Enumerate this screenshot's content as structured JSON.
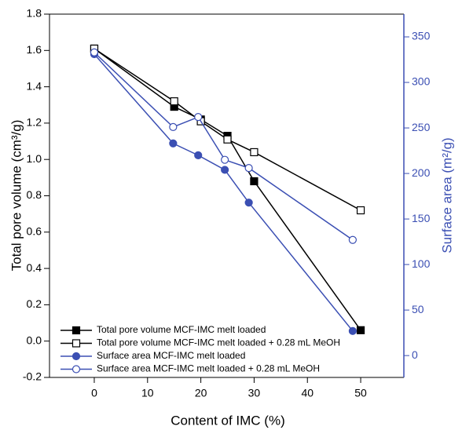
{
  "chart_data": {
    "type": "line",
    "xlabel": "Content of IMC (%)",
    "ylabel": "Total pore volume (cm³/g)",
    "y2label": "Surface area (m²/g)",
    "xlim": [
      -8.4,
      58.1
    ],
    "xticks": [
      0,
      10,
      20,
      30,
      40,
      50
    ],
    "ylim": [
      -0.2,
      1.8
    ],
    "yticks": [
      -0.2,
      {
        "value": 0,
        "label": "0.0"
      },
      0.2,
      0.4,
      0.6,
      0.8,
      {
        "value": 1,
        "label": "1.0"
      },
      1.2,
      1.4,
      1.6,
      1.8
    ],
    "y2lim": [
      -24,
      375
    ],
    "y2ticks": [
      0,
      50,
      100,
      150,
      200,
      250,
      300,
      350
    ],
    "y2color": "#3b4fb3",
    "legend": "lower left",
    "series": [
      {
        "name": "Total pore volume MCF-IMC melt loaded",
        "color": "#000000",
        "marker": "square",
        "filled": true,
        "x": [
          0,
          15,
          20,
          25,
          30,
          50
        ],
        "values": [
          1.61,
          1.29,
          1.22,
          1.13,
          0.88,
          0.06
        ]
      },
      {
        "name": "Total pore volume MCF-IMC melt loaded + 0.28 mL MeOH",
        "color": "#000000",
        "marker": "square",
        "filled": false,
        "x": [
          0,
          15,
          20,
          25,
          30,
          50
        ],
        "values": [
          1.61,
          1.32,
          1.21,
          1.11,
          1.04,
          0.72
        ]
      },
      {
        "name": "Surface area MCF-IMC melt loaded",
        "color": "#3b4fb3",
        "marker": "circle",
        "filled": true,
        "axis": "y2",
        "x": [
          0,
          14.8,
          19.5,
          24.5,
          29,
          48.5
        ],
        "values": [
          331,
          233,
          220,
          204,
          168,
          27
        ]
      },
      {
        "name": "Surface area MCF-IMC melt loaded + 0.28 mL MeOH",
        "color": "#3b4fb3",
        "marker": "circle",
        "filled": false,
        "axis": "y2",
        "x": [
          0,
          14.8,
          19.5,
          24.5,
          29,
          48.5
        ],
        "values": [
          333,
          251,
          262,
          215,
          206,
          127
        ]
      }
    ]
  }
}
